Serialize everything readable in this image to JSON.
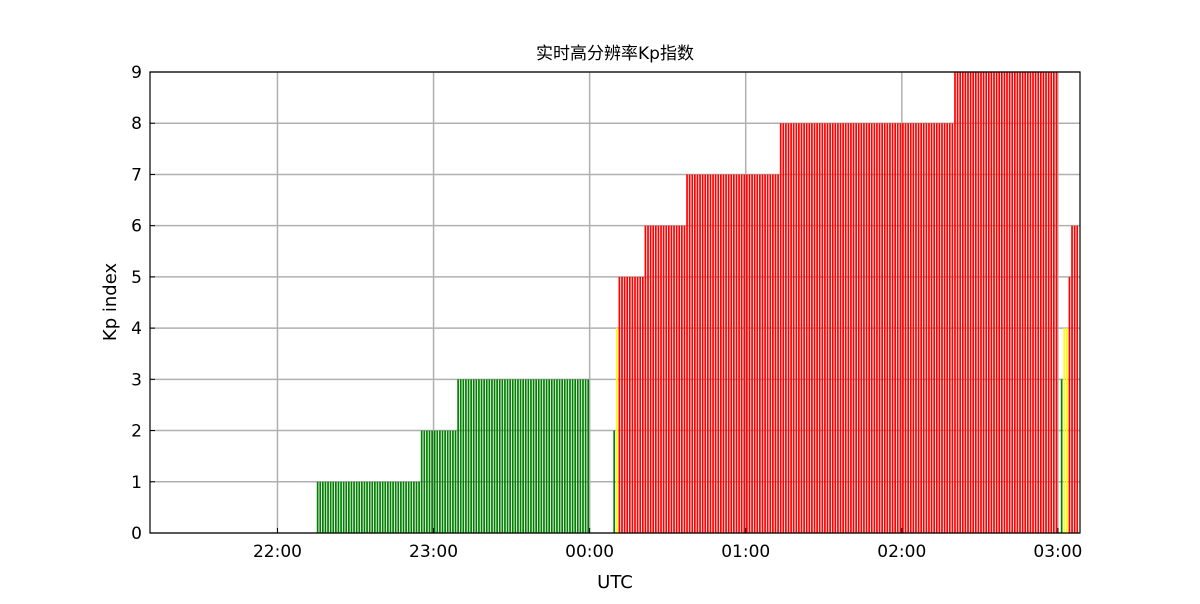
{
  "chart_data": {
    "type": "bar",
    "title": "实时高分辨率Kp指数",
    "xlabel": "UTC",
    "ylabel": "Kp index",
    "xlim": [
      "21:11",
      "03:08"
    ],
    "ylim": [
      0,
      9
    ],
    "yticks": [
      "0",
      "1",
      "2",
      "3",
      "4",
      "5",
      "6",
      "7",
      "8",
      "9"
    ],
    "xticks": [
      "22:00",
      "23:00",
      "00:00",
      "01:00",
      "02:00",
      "03:00"
    ],
    "grid": true,
    "bar_interval_minutes": 1,
    "colors": {
      "low": "#008000",
      "moderate": "#ffff00",
      "high": "#ff0000",
      "grid": "#b0b0b0"
    },
    "color_rule": "Kp<4 green, Kp=4 yellow, Kp>=5 red",
    "segments": [
      {
        "start": "22:15",
        "end": "22:55",
        "kp": 1
      },
      {
        "start": "22:55",
        "end": "23:09",
        "kp": 2
      },
      {
        "start": "23:09",
        "end": "00:00",
        "kp": 3
      },
      {
        "start": "00:09",
        "end": "00:10",
        "kp": 2
      },
      {
        "start": "00:10",
        "end": "00:11",
        "kp": 4
      },
      {
        "start": "00:11",
        "end": "00:21",
        "kp": 5
      },
      {
        "start": "00:21",
        "end": "00:37",
        "kp": 6
      },
      {
        "start": "00:37",
        "end": "01:13",
        "kp": 7
      },
      {
        "start": "01:13",
        "end": "02:20",
        "kp": 8
      },
      {
        "start": "02:20",
        "end": "03:00",
        "kp": 9
      },
      {
        "start": "03:01",
        "end": "03:02",
        "kp": 3
      },
      {
        "start": "03:02",
        "end": "03:04",
        "kp": 4
      },
      {
        "start": "03:04",
        "end": "03:05",
        "kp": 5
      },
      {
        "start": "03:05",
        "end": "03:08",
        "kp": 6
      }
    ]
  }
}
